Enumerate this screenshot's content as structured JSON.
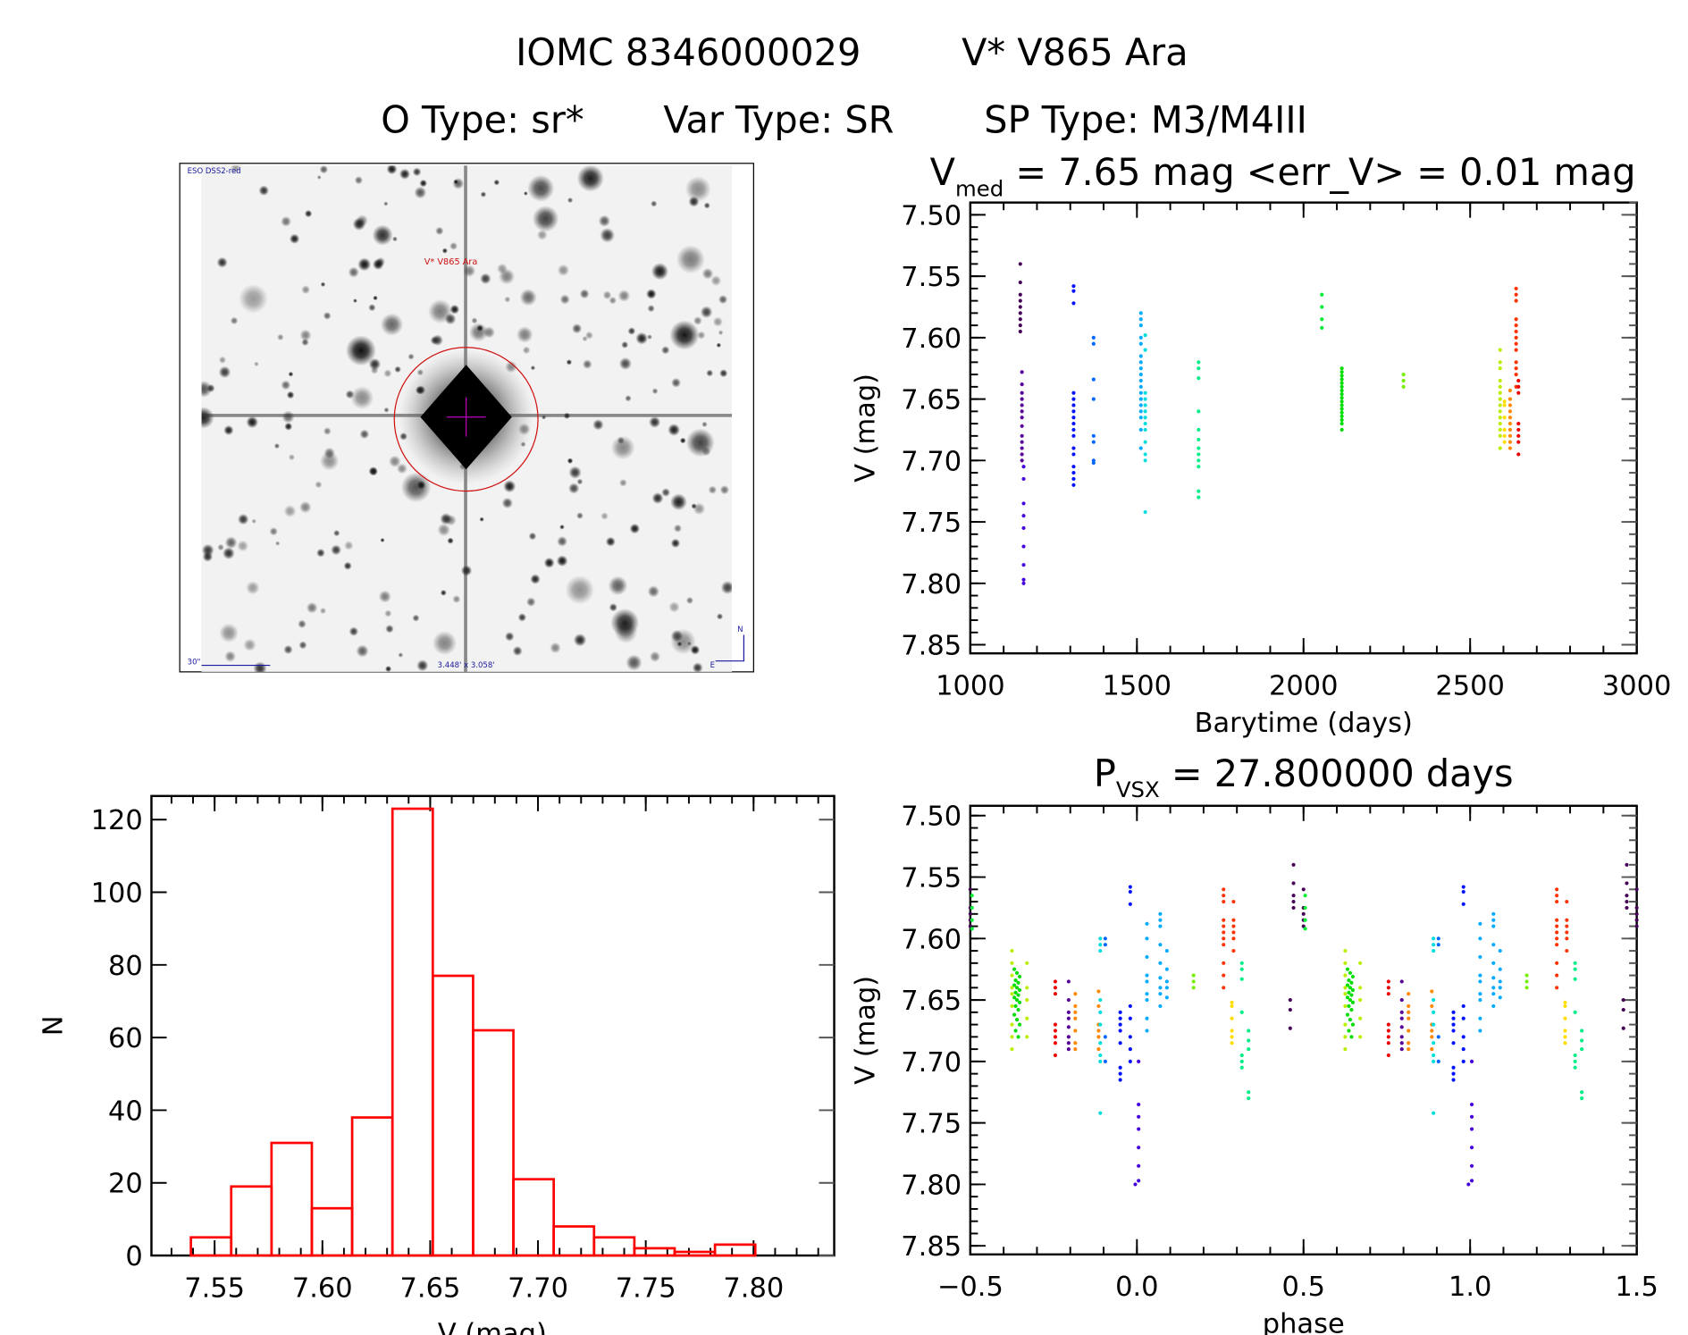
{
  "header": {
    "id": "IOMC 8346000029",
    "name": "V* V865 Ara",
    "otype": "O Type: sr*",
    "vartype": "Var Type: SR",
    "sptype": "SP Type: M3/M4III"
  },
  "finder": {
    "survey": "ESO DSS2-red",
    "target": "V* V865 Ara",
    "scale": "30\"",
    "fov": "3.448' x 3.058'",
    "north": "N",
    "east": "E"
  },
  "chart_data": [
    {
      "type": "scatter",
      "id": "lightcurve",
      "title_main": "V",
      "title_sub": "med",
      "title_rest": " = 7.65 mag <err_V> = 0.01 mag",
      "xlabel": "Barytime (days)",
      "ylabel": "V (mag)",
      "xlim": [
        1000,
        3000
      ],
      "ylim": [
        7.49,
        7.857
      ],
      "y_inverted": true,
      "xticks": [
        1000,
        1500,
        2000,
        2500,
        3000
      ],
      "xtick_labels": [
        "1000",
        "1500",
        "2000",
        "2500",
        "3000"
      ],
      "yticks": [
        7.5,
        7.55,
        7.6,
        7.65,
        7.7,
        7.75,
        7.8,
        7.85
      ],
      "ytick_labels": [
        "7.50",
        "7.55",
        "7.60",
        "7.65",
        "7.70",
        "7.75",
        "7.80",
        "7.85"
      ],
      "clusters": [
        {
          "t": 1150,
          "color": "#440055",
          "v": [
            7.54,
            7.555,
            7.565,
            7.57,
            7.575,
            7.58,
            7.585,
            7.59,
            7.595
          ]
        },
        {
          "t": 1155,
          "color": "#550099",
          "v": [
            7.628,
            7.638,
            7.645,
            7.65,
            7.655,
            7.66,
            7.665,
            7.672,
            7.68,
            7.685,
            7.69,
            7.695,
            7.7
          ]
        },
        {
          "t": 1160,
          "color": "#4400dd",
          "v": [
            7.705,
            7.715,
            7.735,
            7.745,
            7.755,
            7.77,
            7.785,
            7.797,
            7.8
          ]
        },
        {
          "t": 1310,
          "color": "#0011ff",
          "v": [
            7.558,
            7.562,
            7.572,
            7.645,
            7.65,
            7.655,
            7.66,
            7.665,
            7.67,
            7.675,
            7.68,
            7.69,
            7.695,
            7.705,
            7.71,
            7.715,
            7.72
          ]
        },
        {
          "t": 1370,
          "color": "#0066ff",
          "v": [
            7.6,
            7.605,
            7.634,
            7.65,
            7.68,
            7.685,
            7.7,
            7.702
          ]
        },
        {
          "t": 1512,
          "color": "#00aaff",
          "v": [
            7.58,
            7.585,
            7.59,
            7.6,
            7.605,
            7.615,
            7.62,
            7.625,
            7.63,
            7.635,
            7.64,
            7.645,
            7.65,
            7.655,
            7.66,
            7.665,
            7.675,
            7.69
          ]
        },
        {
          "t": 1525,
          "color": "#00dddd",
          "v": [
            7.598,
            7.61,
            7.645,
            7.65,
            7.655,
            7.66,
            7.665,
            7.67,
            7.675,
            7.685,
            7.695,
            7.7,
            7.742
          ]
        },
        {
          "t": 1685,
          "color": "#00ee88",
          "v": [
            7.62,
            7.625,
            7.633,
            7.66,
            7.675,
            7.683,
            7.69,
            7.695,
            7.7,
            7.705,
            7.725,
            7.73
          ]
        },
        {
          "t": 2055,
          "color": "#00ee33",
          "v": [
            7.565,
            7.575,
            7.585,
            7.592
          ]
        },
        {
          "t": 2115,
          "color": "#00dd00",
          "v": [
            7.625,
            7.628,
            7.631,
            7.634,
            7.637,
            7.64,
            7.643,
            7.646,
            7.649,
            7.652,
            7.655,
            7.658,
            7.661,
            7.664,
            7.667,
            7.67,
            7.675
          ]
        },
        {
          "t": 2300,
          "color": "#77ee00",
          "v": [
            7.63,
            7.635,
            7.64
          ]
        },
        {
          "t": 2590,
          "color": "#bbee00",
          "v": [
            7.61,
            7.62,
            7.625,
            7.635,
            7.64,
            7.645,
            7.65,
            7.655,
            7.66,
            7.665,
            7.67,
            7.675,
            7.68,
            7.69
          ]
        },
        {
          "t": 2603,
          "color": "#ffdd00",
          "v": [
            7.652,
            7.655,
            7.665,
            7.675,
            7.68,
            7.685
          ]
        },
        {
          "t": 2620,
          "color": "#ff8800",
          "v": [
            7.643,
            7.65,
            7.655,
            7.66,
            7.665,
            7.67,
            7.675,
            7.68,
            7.685,
            7.69
          ]
        },
        {
          "t": 2638,
          "color": "#ff3300",
          "v": [
            7.56,
            7.565,
            7.57,
            7.585,
            7.59,
            7.595,
            7.6,
            7.605,
            7.61,
            7.62,
            7.625,
            7.63,
            7.64
          ]
        },
        {
          "t": 2645,
          "color": "#ee0000",
          "v": [
            7.635,
            7.64,
            7.645,
            7.67,
            7.675,
            7.68,
            7.685,
            7.695
          ]
        }
      ]
    },
    {
      "type": "bar",
      "id": "histogram",
      "xlabel": "V (mag)",
      "ylabel": "N",
      "xlim": [
        7.5207,
        7.8374
      ],
      "ylim": [
        0,
        126.5
      ],
      "xticks": [
        7.55,
        7.6,
        7.65,
        7.7,
        7.75,
        7.8
      ],
      "xtick_labels": [
        "7.55",
        "7.60",
        "7.65",
        "7.70",
        "7.75",
        "7.80"
      ],
      "yticks": [
        0,
        20,
        40,
        60,
        80,
        100,
        120
      ],
      "ytick_labels": [
        "0",
        "20",
        "40",
        "60",
        "80",
        "100",
        "120"
      ],
      "bin_start": 7.539,
      "bin_width": 0.0187,
      "values": [
        5,
        19,
        31,
        13,
        38,
        123,
        77,
        62,
        21,
        8,
        5,
        2,
        1,
        3
      ],
      "color": "#ff0000"
    },
    {
      "type": "scatter",
      "id": "phased",
      "title_main": "P",
      "title_sub": "VSX",
      "title_rest": " = 27.800000 days",
      "xlabel": "phase",
      "ylabel": "V (mag)",
      "xlim": [
        -0.5,
        1.5
      ],
      "ylim": [
        7.492,
        7.857
      ],
      "y_inverted": true,
      "xticks": [
        -0.5,
        0.0,
        0.5,
        1.0,
        1.5
      ],
      "xtick_labels": [
        "−0.5",
        "0.0",
        "0.5",
        "1.0",
        "1.5"
      ],
      "yticks": [
        7.5,
        7.55,
        7.6,
        7.65,
        7.7,
        7.75,
        7.8,
        7.85
      ],
      "ytick_labels": [
        "7.50",
        "7.55",
        "7.60",
        "7.65",
        "7.70",
        "7.75",
        "7.80",
        "7.85"
      ],
      "repeat_period": 1,
      "clusters": [
        {
          "p": 0.47,
          "color": "#440055",
          "v": [
            7.54,
            7.555,
            7.565,
            7.57,
            7.575
          ]
        },
        {
          "p": 0.5,
          "color": "#440055",
          "v": [
            7.56,
            7.575,
            7.58,
            7.585,
            7.59
          ]
        },
        {
          "p": 0.46,
          "color": "#440055",
          "v": [
            7.65,
            7.658,
            7.673
          ]
        },
        {
          "p": -0.36,
          "color": "#00dd00",
          "v": [
            7.625,
            7.628,
            7.631,
            7.634,
            7.636,
            7.638,
            7.64,
            7.642,
            7.644,
            7.646,
            7.648,
            7.65,
            7.652,
            7.655,
            7.658,
            7.662,
            7.666,
            7.67,
            7.675,
            7.68
          ]
        },
        {
          "p": -0.375,
          "color": "#bbee00",
          "v": [
            7.61,
            7.62,
            7.63,
            7.64,
            7.645,
            7.655,
            7.67,
            7.68,
            7.69
          ]
        },
        {
          "p": -0.33,
          "color": "#bbee00",
          "v": [
            7.62,
            7.64,
            7.65,
            7.665,
            7.68
          ]
        },
        {
          "p": -0.245,
          "color": "#ee0000",
          "v": [
            7.635,
            7.64,
            7.645,
            7.67,
            7.675,
            7.68,
            7.685,
            7.695
          ]
        },
        {
          "p": -0.205,
          "color": "#550099",
          "v": [
            7.635,
            7.65,
            7.66,
            7.665,
            7.672,
            7.68,
            7.685,
            7.69
          ]
        },
        {
          "p": -0.185,
          "color": "#ff8800",
          "v": [
            7.645,
            7.655,
            7.66,
            7.665,
            7.675,
            7.685,
            7.69
          ]
        },
        {
          "p": -0.115,
          "color": "#ff8800",
          "v": [
            7.643,
            7.655,
            7.67,
            7.675,
            7.68,
            7.69
          ]
        },
        {
          "p": -0.11,
          "color": "#00dddd",
          "v": [
            7.6,
            7.605,
            7.61,
            7.65,
            7.66,
            7.67,
            7.685,
            7.695,
            7.7,
            7.742
          ]
        },
        {
          "p": -0.095,
          "color": "#0066ff",
          "v": [
            7.6,
            7.605,
            7.68,
            7.7
          ]
        },
        {
          "p": -0.05,
          "color": "#0011ff",
          "v": [
            7.66,
            7.665,
            7.67,
            7.675,
            7.685,
            7.705,
            7.71,
            7.715
          ]
        },
        {
          "p": -0.02,
          "color": "#0011ff",
          "v": [
            7.558,
            7.562,
            7.572,
            7.655,
            7.665,
            7.68,
            7.69,
            7.7
          ]
        },
        {
          "p": 0.005,
          "color": "#4400dd",
          "v": [
            7.7,
            7.735,
            7.745,
            7.755,
            7.77,
            7.785,
            7.797
          ]
        },
        {
          "p": -0.005,
          "color": "#4400dd",
          "v": [
            7.8
          ]
        },
        {
          "p": 0.03,
          "color": "#00aaff",
          "v": [
            7.588,
            7.6,
            7.615,
            7.63,
            7.635,
            7.645,
            7.65,
            7.665,
            7.675
          ]
        },
        {
          "p": 0.07,
          "color": "#00aaff",
          "v": [
            7.58,
            7.585,
            7.59,
            7.605,
            7.62,
            7.632,
            7.64,
            7.645,
            7.655
          ]
        },
        {
          "p": 0.09,
          "color": "#00aaff",
          "v": [
            7.61,
            7.625,
            7.635,
            7.64,
            7.648
          ]
        },
        {
          "p": 0.17,
          "color": "#77ee00",
          "v": [
            7.63,
            7.635,
            7.64
          ]
        },
        {
          "p": 0.26,
          "color": "#ff3300",
          "v": [
            7.56,
            7.565,
            7.57,
            7.585,
            7.59,
            7.595,
            7.6,
            7.605,
            7.62,
            7.63,
            7.64
          ]
        },
        {
          "p": 0.285,
          "color": "#ffdd00",
          "v": [
            7.652,
            7.655,
            7.665,
            7.675,
            7.68,
            7.685
          ]
        },
        {
          "p": 0.29,
          "color": "#ff3300",
          "v": [
            7.57,
            7.585,
            7.59,
            7.595,
            7.6,
            7.61
          ]
        },
        {
          "p": 0.315,
          "color": "#00ee88",
          "v": [
            7.62,
            7.625,
            7.633,
            7.66,
            7.695,
            7.7,
            7.705
          ]
        },
        {
          "p": 0.335,
          "color": "#00ee88",
          "v": [
            7.675,
            7.683,
            7.69,
            7.725,
            7.73
          ]
        },
        {
          "p": 0.505,
          "color": "#00ee33",
          "v": [
            7.565,
            7.575,
            7.585,
            7.592
          ]
        }
      ]
    }
  ]
}
